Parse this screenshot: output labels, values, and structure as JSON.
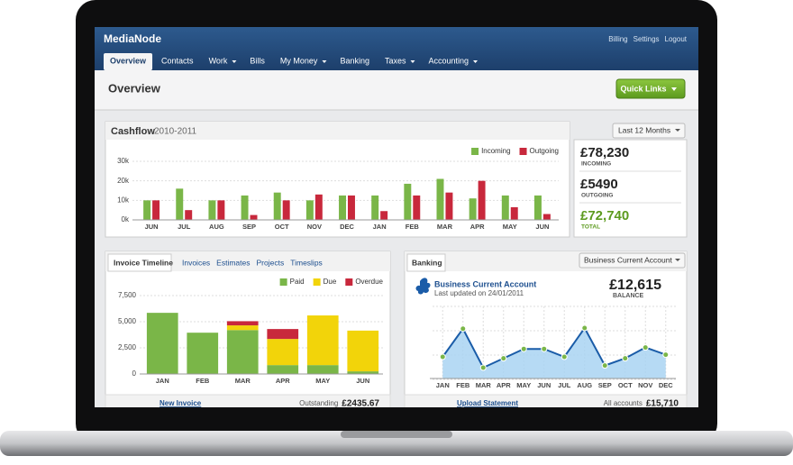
{
  "header": {
    "brand": "MediaNode",
    "links": [
      "Billing",
      "Settings",
      "Logout"
    ]
  },
  "nav": [
    "Overview",
    "Contacts",
    "Work",
    "Bills",
    "My Money",
    "Banking",
    "Taxes",
    "Accounting"
  ],
  "page": {
    "title": "Overview",
    "quick_links": "Quick Links"
  },
  "cashflow_panel": {
    "period_select": "Last 12 Months",
    "summary": [
      {
        "amount": "£78,230",
        "label": "INCOMING"
      },
      {
        "amount": "£5490",
        "label": "OUTGOING"
      },
      {
        "amount": "£72,740",
        "label": "TOTAL"
      }
    ]
  },
  "invoice_panel": {
    "tabs": [
      "Invoice Timeline",
      "Invoices",
      "Estimates",
      "Projects",
      "Timeslips"
    ],
    "footer": {
      "action": "New Invoice",
      "label": "Outstanding",
      "amount": "£2435.67"
    }
  },
  "banking_panel": {
    "tab": "Banking",
    "account_select": "Business Current Account",
    "account": "Business Current Account",
    "updated": "Last updated on 24/01/2011",
    "balance": "£12,615",
    "balance_label": "BALANCE",
    "footer": {
      "action": "Upload Statement",
      "label": "All accounts",
      "amount": "£15,710"
    }
  },
  "chart_data": [
    {
      "type": "bar",
      "title": "Cashflow",
      "subtitle": "2010-2011",
      "categories": [
        "JUN",
        "JUL",
        "AUG",
        "SEP",
        "OCT",
        "NOV",
        "DEC",
        "JAN",
        "FEB",
        "MAR",
        "APR",
        "MAY",
        "JUN"
      ],
      "series": [
        {
          "name": "Incoming",
          "color": "#7ab648",
          "values": [
            10000,
            16000,
            10000,
            12500,
            14000,
            10000,
            12500,
            12500,
            18500,
            21000,
            11000,
            12500,
            12500
          ]
        },
        {
          "name": "Outgoing",
          "color": "#c8283c",
          "values": [
            10000,
            5000,
            10000,
            2500,
            10000,
            13000,
            12500,
            4500,
            12500,
            14000,
            20000,
            6500,
            3000
          ]
        }
      ],
      "ylim": [
        0,
        30000
      ],
      "yticks": [
        {
          "value": 0,
          "label": "0k"
        },
        {
          "value": 10000,
          "label": "10k"
        },
        {
          "value": 20000,
          "label": "20k"
        },
        {
          "value": 30000,
          "label": "30k"
        }
      ],
      "grid": true,
      "legend": "top-right"
    },
    {
      "type": "bar",
      "stacked": true,
      "categories": [
        "JAN",
        "FEB",
        "MAR",
        "APR",
        "MAY",
        "JUN"
      ],
      "series": [
        {
          "name": "Paid",
          "color": "#7ab648",
          "values": [
            5850,
            3950,
            4200,
            850,
            850,
            250
          ]
        },
        {
          "name": "Due",
          "color": "#f2d40a",
          "values": [
            0,
            0,
            450,
            2500,
            4750,
            3900
          ]
        },
        {
          "name": "Overdue",
          "color": "#c8283c",
          "values": [
            0,
            0,
            400,
            950,
            0,
            0
          ]
        }
      ],
      "ylim": [
        0,
        7500
      ],
      "yticks": [
        0,
        {
          "value": 2500,
          "label": "2,500"
        },
        {
          "value": 5000,
          "label": "5,000"
        },
        {
          "value": 7500,
          "label": "7,500"
        }
      ],
      "grid": true,
      "legend": "top-right"
    },
    {
      "type": "line",
      "area": true,
      "categories": [
        "JAN",
        "FEB",
        "MAR",
        "APR",
        "MAY",
        "JUN",
        "JUL",
        "AUG",
        "SEP",
        "OCT",
        "NOV",
        "DEC"
      ],
      "values": [
        30,
        69,
        15,
        28,
        41,
        41,
        30,
        70,
        18,
        28,
        43,
        33
      ],
      "color": "#1a5ca8",
      "ylim": [
        0,
        100
      ],
      "grid": true
    }
  ]
}
